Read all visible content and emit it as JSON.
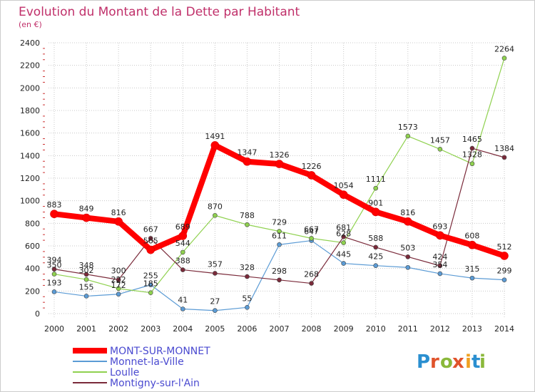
{
  "chart_data": {
    "type": "line",
    "title": "Evolution du Montant de la Dette par Habitant",
    "subtitle": "(en €)",
    "x": [
      "2000",
      "2001",
      "2002",
      "2003",
      "2004",
      "2005",
      "2006",
      "2007",
      "2008",
      "2009",
      "2010",
      "2011",
      "2012",
      "2013",
      "2014"
    ],
    "ylim": [
      0,
      2400
    ],
    "yticks": [
      0,
      200,
      400,
      600,
      800,
      1000,
      1200,
      1400,
      1600,
      1800,
      2000,
      2200,
      2400
    ],
    "grid": true,
    "legend_position": "bottom-left",
    "series": [
      {
        "name": "Monnet-la-Ville",
        "color": "#5b9bd5",
        "width": 1.2,
        "values": [
          193,
          155,
          172,
          255,
          41,
          27,
          55,
          611,
          647,
          445,
          425,
          409,
          354,
          315,
          299
        ],
        "labels": [
          "193",
          "155",
          "172",
          "255",
          "41",
          "27",
          "55",
          "611",
          "647",
          "445",
          "425",
          "",
          "354",
          "315",
          "299"
        ]
      },
      {
        "name": "Loulle",
        "color": "#8fd14f",
        "width": 1.2,
        "values": [
          350,
          302,
          222,
          185,
          544,
          870,
          788,
          729,
          667,
          628,
          1111,
          1573,
          1457,
          1328,
          2264
        ],
        "labels": [
          "350",
          "302",
          "222",
          "185",
          "544",
          "870",
          "788",
          "729",
          "667",
          "628",
          "1111",
          "1573",
          "1457",
          "1328",
          "2264"
        ]
      },
      {
        "name": "Montigny-sur-l'Ain",
        "color": "#7a2a3a",
        "width": 1.2,
        "values": [
          394,
          348,
          300,
          667,
          388,
          357,
          328,
          298,
          268,
          681,
          588,
          503,
          424,
          1465,
          1384
        ],
        "labels": [
          "394",
          "348",
          "300",
          "667",
          "388",
          "357",
          "328",
          "298",
          "268",
          "681",
          "588",
          "503",
          "424",
          "1465",
          "1384"
        ]
      },
      {
        "name": "MONT-SUR-MONNET",
        "color": "#ff0000",
        "width": 8,
        "values": [
          883,
          849,
          816,
          565,
          689,
          1491,
          1347,
          1326,
          1226,
          1054,
          901,
          816,
          693,
          608,
          512
        ],
        "labels": [
          "883",
          "849",
          "816",
          "565",
          "689",
          "1491",
          "1347",
          "1326",
          "1226",
          "1054",
          "901",
          "816",
          "693",
          "608",
          "512"
        ]
      }
    ],
    "legend_order": [
      "MONT-SUR-MONNET",
      "Monnet-la-Ville",
      "Loulle",
      "Montigny-sur-l'Ain"
    ]
  },
  "logo": {
    "text": "Proxiti",
    "colors": [
      "#2a8fd0",
      "#e0532b",
      "#8ab83a",
      "#e0532b",
      "#f0a020",
      "#2a8fd0",
      "#8ab83a"
    ]
  },
  "colors": {
    "grid": "#c8c8c8",
    "axis_tick_red": "#cc3333",
    "background": "#ffffff"
  }
}
